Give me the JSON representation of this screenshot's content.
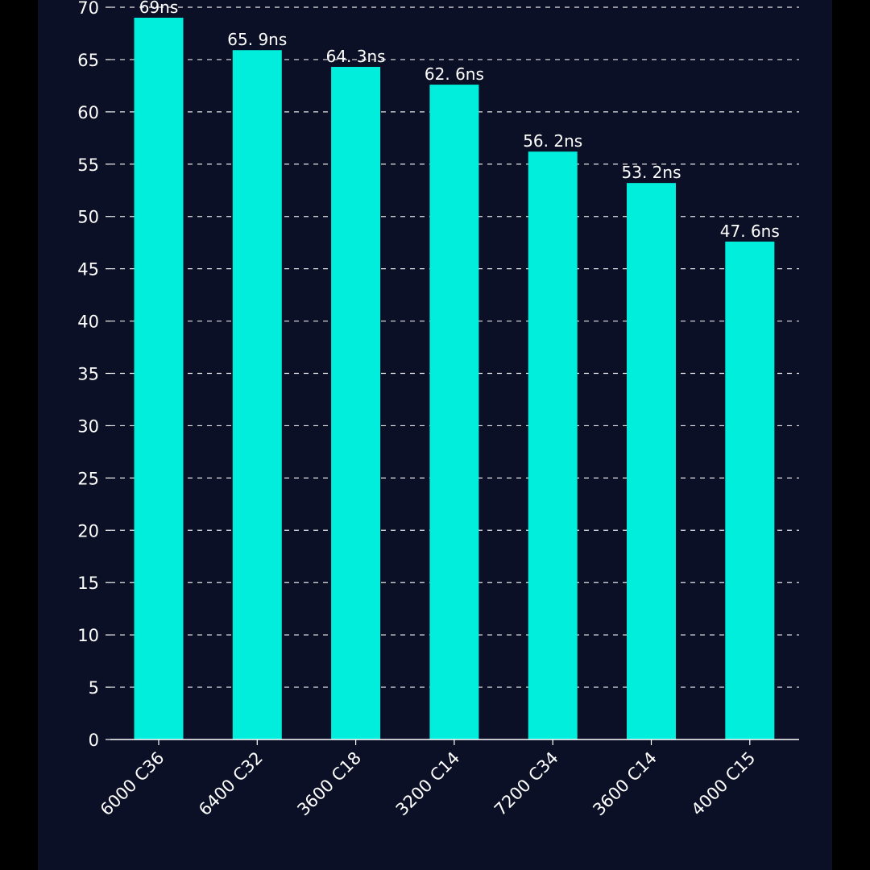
{
  "colors": {
    "background": "#000000",
    "panel": "#0c1026",
    "bar": "#00eedb",
    "text": "#ffffff"
  },
  "chart_data": {
    "type": "bar",
    "title": "",
    "xlabel": "",
    "ylabel": "",
    "ylim": [
      0,
      70
    ],
    "ytick_step": 5,
    "grid": true,
    "categories": [
      "6000 C36",
      "6400 C32",
      "3600 C18",
      "3200 C14",
      "7200 C34",
      "3600 C14",
      "4000 C15"
    ],
    "values": [
      69,
      65.9,
      64.3,
      62.6,
      56.2,
      53.2,
      47.6
    ],
    "data_labels": [
      "69ns",
      "65. 9ns",
      "64. 3ns",
      "62. 6ns",
      "56. 2ns",
      "53. 2ns",
      "47. 6ns"
    ]
  }
}
